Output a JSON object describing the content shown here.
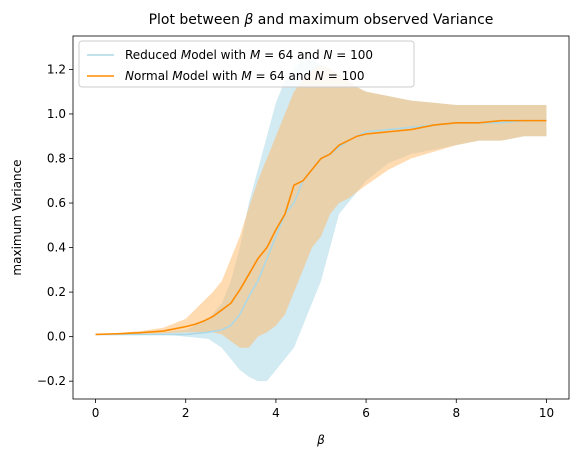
{
  "chart_data": {
    "type": "line",
    "title": "Plot between β and maximum observed Variance",
    "xlabel": "β",
    "ylabel": "maximum Variance",
    "xlim": [
      -0.5,
      10.5
    ],
    "ylim": [
      -0.28,
      1.35
    ],
    "xticks": [
      0,
      2,
      4,
      6,
      8,
      10
    ],
    "yticks": [
      -0.2,
      0.0,
      0.2,
      0.4,
      0.6,
      0.8,
      1.0,
      1.2
    ],
    "grid": false,
    "legend_position": "top-left",
    "series": [
      {
        "name": "Reduced Model with M = 64 and N = 100",
        "color": "#add8e6",
        "band_color": "#add8e6",
        "x": [
          0,
          0.5,
          1.0,
          1.5,
          2.0,
          2.5,
          2.8,
          3.0,
          3.2,
          3.4,
          3.6,
          3.8,
          4.0,
          4.2,
          4.4,
          4.6,
          4.8,
          5.0,
          5.2,
          5.4,
          5.6,
          5.8,
          6.0,
          6.5,
          7.0,
          7.5,
          8.0,
          8.5,
          9.0,
          9.5,
          10.0
        ],
        "mean": [
          0.01,
          0.01,
          0.01,
          0.01,
          0.01,
          0.02,
          0.03,
          0.05,
          0.1,
          0.18,
          0.25,
          0.35,
          0.45,
          0.55,
          0.6,
          0.7,
          0.75,
          0.8,
          0.82,
          0.85,
          0.88,
          0.9,
          0.92,
          0.93,
          0.94,
          0.95,
          0.96,
          0.96,
          0.96,
          0.97,
          0.97
        ],
        "lower": [
          0.01,
          0.01,
          0.01,
          0.01,
          0.0,
          -0.01,
          -0.05,
          -0.1,
          -0.15,
          -0.18,
          -0.2,
          -0.2,
          -0.15,
          -0.1,
          -0.05,
          0.05,
          0.15,
          0.25,
          0.4,
          0.55,
          0.6,
          0.65,
          0.7,
          0.78,
          0.82,
          0.84,
          0.86,
          0.88,
          0.88,
          0.9,
          0.9
        ],
        "upper": [
          0.01,
          0.01,
          0.01,
          0.02,
          0.03,
          0.08,
          0.15,
          0.25,
          0.4,
          0.6,
          0.75,
          0.9,
          1.05,
          1.15,
          1.2,
          1.25,
          1.25,
          1.22,
          1.2,
          1.18,
          1.15,
          1.12,
          1.1,
          1.08,
          1.06,
          1.05,
          1.04,
          1.04,
          1.04,
          1.04,
          1.04
        ]
      },
      {
        "name": "Normal Model with M = 64 and N = 100",
        "color": "#ff8c00",
        "band_color": "#ffb766",
        "x": [
          0,
          0.5,
          1.0,
          1.5,
          2.0,
          2.2,
          2.4,
          2.6,
          2.8,
          3.0,
          3.2,
          3.4,
          3.6,
          3.8,
          4.0,
          4.2,
          4.4,
          4.6,
          4.8,
          5.0,
          5.2,
          5.4,
          5.6,
          5.8,
          6.0,
          6.5,
          7.0,
          7.5,
          8.0,
          8.5,
          9.0,
          9.5,
          10.0
        ],
        "mean": [
          0.01,
          0.013,
          0.018,
          0.025,
          0.045,
          0.055,
          0.07,
          0.09,
          0.12,
          0.15,
          0.21,
          0.28,
          0.35,
          0.4,
          0.48,
          0.55,
          0.68,
          0.7,
          0.75,
          0.8,
          0.82,
          0.86,
          0.88,
          0.9,
          0.91,
          0.92,
          0.93,
          0.95,
          0.96,
          0.96,
          0.97,
          0.97,
          0.97
        ],
        "lower": [
          0.01,
          0.01,
          0.012,
          0.015,
          0.02,
          0.02,
          0.02,
          0.02,
          0.01,
          -0.02,
          -0.05,
          -0.05,
          0.0,
          0.02,
          0.05,
          0.1,
          0.2,
          0.3,
          0.4,
          0.45,
          0.55,
          0.6,
          0.62,
          0.65,
          0.68,
          0.75,
          0.8,
          0.83,
          0.86,
          0.88,
          0.88,
          0.9,
          0.9
        ],
        "upper": [
          0.01,
          0.017,
          0.025,
          0.04,
          0.08,
          0.12,
          0.16,
          0.2,
          0.25,
          0.35,
          0.45,
          0.58,
          0.7,
          0.8,
          0.9,
          1.0,
          1.1,
          1.15,
          1.2,
          1.22,
          1.2,
          1.18,
          1.15,
          1.12,
          1.1,
          1.08,
          1.06,
          1.05,
          1.04,
          1.04,
          1.04,
          1.04,
          1.04
        ]
      }
    ]
  }
}
